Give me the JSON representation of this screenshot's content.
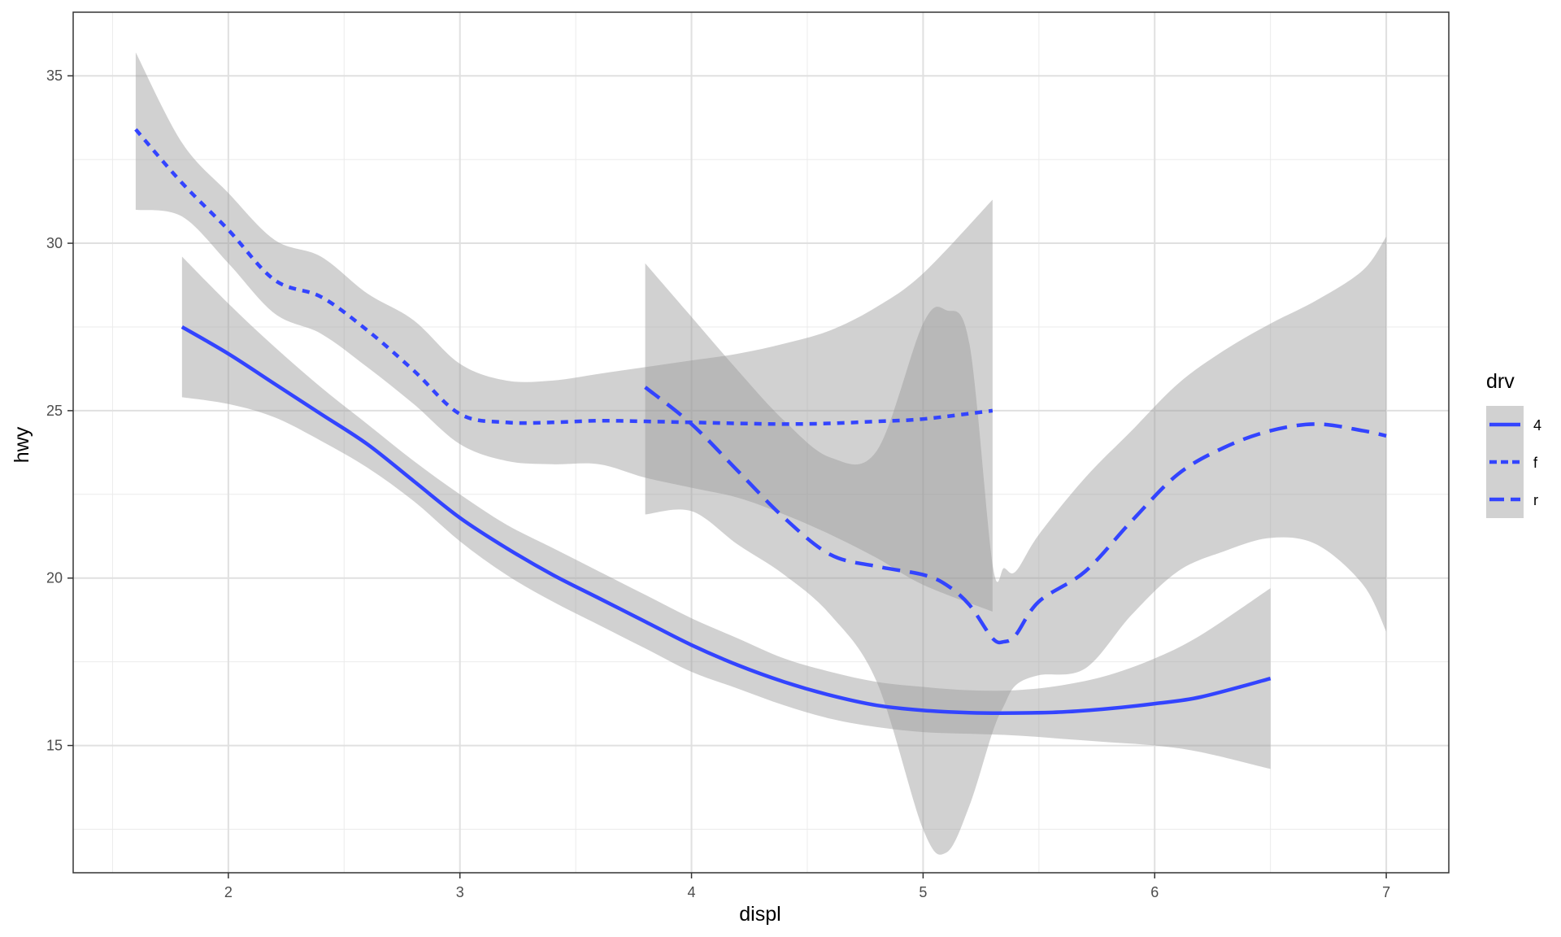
{
  "chart_data": {
    "type": "line",
    "title": "",
    "xlabel": "displ",
    "ylabel": "hwy",
    "xlim": [
      1.33,
      7.27
    ],
    "ylim": [
      11.2,
      36.9
    ],
    "x_ticks": [
      2,
      3,
      4,
      5,
      6,
      7
    ],
    "x_tick_labels": [
      "2",
      "3",
      "4",
      "5",
      "6",
      "7"
    ],
    "y_ticks": [
      15,
      20,
      25,
      30,
      35
    ],
    "y_tick_labels": [
      "15",
      "20",
      "25",
      "30",
      "35"
    ],
    "grid": true,
    "legend": {
      "title": "drv",
      "position": "right"
    },
    "line_color": "#3344ff",
    "band_color": "#999999",
    "series": [
      {
        "name": "4",
        "linetype": "solid",
        "x": [
          1.8,
          2.0,
          2.2,
          2.4,
          2.6,
          2.8,
          3.0,
          3.2,
          3.4,
          3.6,
          3.8,
          4.0,
          4.2,
          4.4,
          4.6,
          4.8,
          5.0,
          5.2,
          5.4,
          5.6,
          5.8,
          6.0,
          6.2,
          6.5
        ],
        "y": [
          27.5,
          26.7,
          25.8,
          24.9,
          24.0,
          22.9,
          21.8,
          20.9,
          20.1,
          19.4,
          18.7,
          18.0,
          17.4,
          16.9,
          16.5,
          16.2,
          16.05,
          15.98,
          15.97,
          16.0,
          16.1,
          16.25,
          16.45,
          17.0
        ],
        "lower": [
          25.4,
          25.2,
          24.8,
          24.1,
          23.3,
          22.3,
          21.1,
          20.1,
          19.3,
          18.6,
          17.9,
          17.2,
          16.7,
          16.2,
          15.8,
          15.55,
          15.4,
          15.35,
          15.3,
          15.2,
          15.1,
          15.0,
          14.8,
          14.3
        ],
        "upper": [
          29.6,
          28.2,
          26.9,
          25.7,
          24.6,
          23.5,
          22.5,
          21.6,
          20.9,
          20.2,
          19.5,
          18.8,
          18.2,
          17.6,
          17.2,
          16.9,
          16.75,
          16.65,
          16.65,
          16.8,
          17.1,
          17.6,
          18.3,
          19.7
        ]
      },
      {
        "name": "f",
        "linetype": "dotted",
        "x": [
          1.6,
          1.8,
          2.0,
          2.2,
          2.4,
          2.6,
          2.8,
          3.0,
          3.2,
          3.4,
          3.6,
          3.8,
          4.0,
          4.2,
          4.4,
          4.6,
          4.8,
          5.0,
          5.3
        ],
        "y": [
          33.4,
          31.8,
          30.4,
          28.9,
          28.4,
          27.4,
          26.2,
          24.9,
          24.65,
          24.65,
          24.7,
          24.68,
          24.65,
          24.62,
          24.6,
          24.62,
          24.68,
          24.75,
          25.0
        ],
        "lower": [
          31.0,
          30.8,
          29.4,
          27.9,
          27.3,
          26.3,
          25.2,
          24.0,
          23.5,
          23.4,
          23.4,
          23.0,
          22.7,
          22.4,
          21.9,
          21.3,
          20.6,
          19.8,
          19.0
        ],
        "upper": [
          35.7,
          33.0,
          31.5,
          30.1,
          29.6,
          28.5,
          27.7,
          26.4,
          25.9,
          25.9,
          26.1,
          26.3,
          26.5,
          26.7,
          27.0,
          27.4,
          28.1,
          29.1,
          31.3
        ]
      },
      {
        "name": "r",
        "linetype": "dashed",
        "x": [
          3.8,
          4.0,
          4.2,
          4.4,
          4.6,
          4.8,
          5.0,
          5.1,
          5.2,
          5.3,
          5.35,
          5.4,
          5.5,
          5.7,
          5.9,
          6.1,
          6.3,
          6.5,
          6.7,
          6.9,
          7.0
        ],
        "y": [
          25.7,
          24.6,
          23.2,
          21.8,
          20.7,
          20.35,
          20.1,
          19.8,
          19.2,
          18.2,
          18.1,
          18.3,
          19.3,
          20.2,
          21.7,
          23.1,
          23.9,
          24.4,
          24.6,
          24.4,
          24.25
        ],
        "lower": [
          21.9,
          22.0,
          21.0,
          20.1,
          18.9,
          16.9,
          12.5,
          11.8,
          13.2,
          15.4,
          16.2,
          16.8,
          17.1,
          17.3,
          18.9,
          20.2,
          20.8,
          21.2,
          21.0,
          19.8,
          18.4
        ],
        "upper": [
          29.4,
          27.8,
          26.2,
          24.7,
          23.6,
          23.8,
          27.6,
          28.0,
          27.0,
          20.4,
          20.3,
          20.2,
          21.3,
          23.0,
          24.4,
          25.8,
          26.8,
          27.6,
          28.3,
          29.2,
          30.2
        ]
      }
    ]
  }
}
